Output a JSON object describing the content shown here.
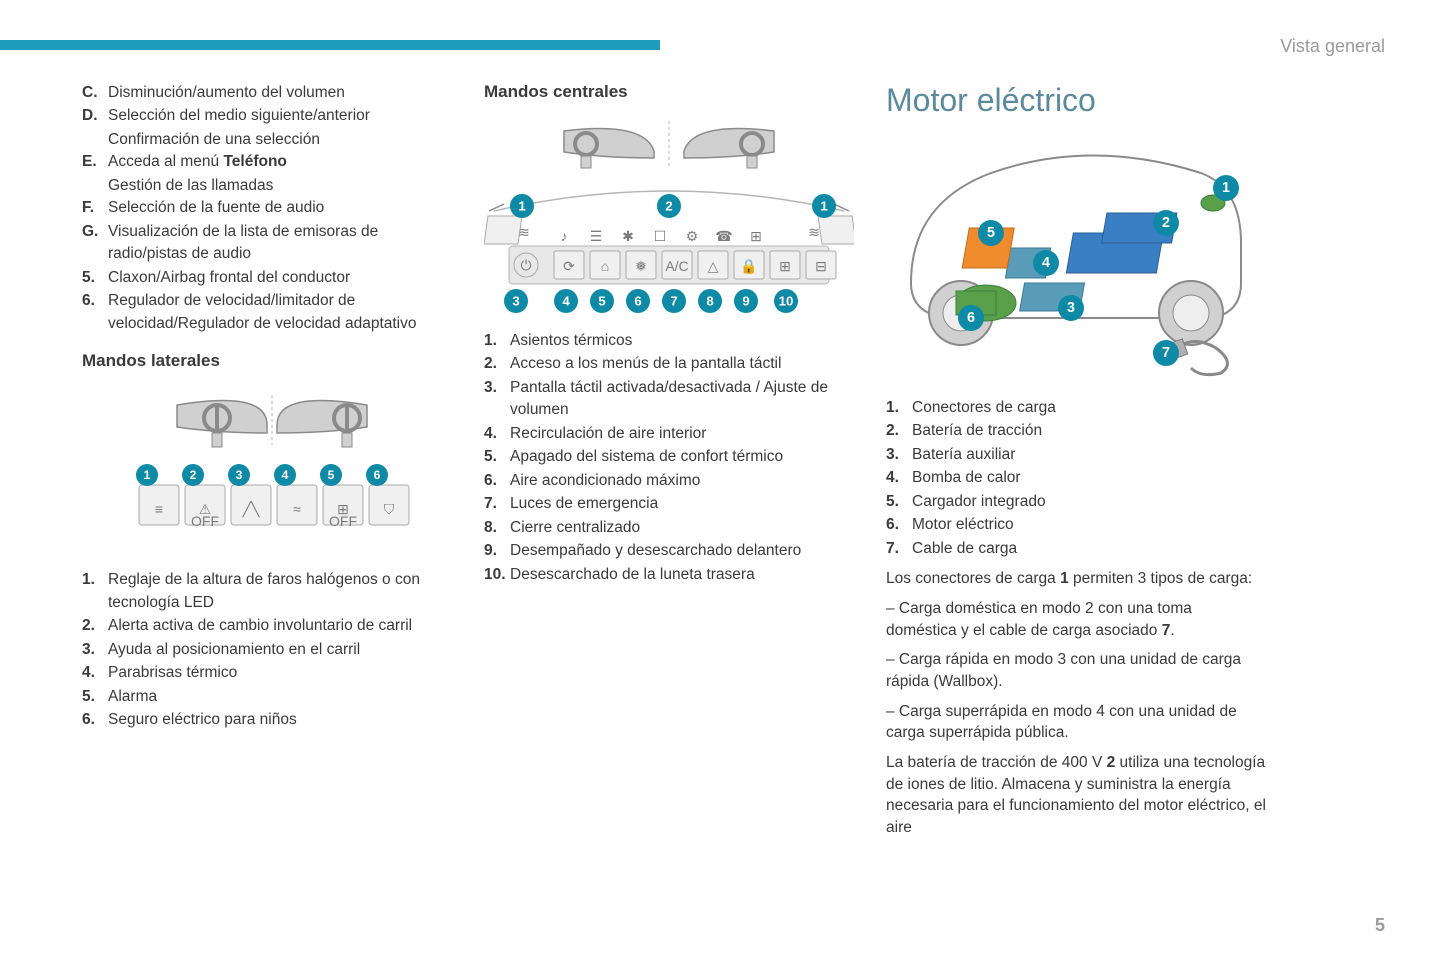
{
  "header": {
    "label": "Vista general"
  },
  "pageNumber": "5",
  "colors": {
    "accent": "#1b9cb8",
    "callout": "#0e8aa6",
    "titleGray": "#5b8a9c",
    "text": "#3a3a3a",
    "muted": "#9a9a9a"
  },
  "col1": {
    "letterList": [
      {
        "m": "C.",
        "t": "Disminución/aumento del volumen"
      },
      {
        "m": "D.",
        "t": "Selección del medio siguiente/anterior",
        "sub": "Confirmación de una selección"
      },
      {
        "m": "E.",
        "t": "Acceda al menú ",
        "bold": "Teléfono",
        "sub": "Gestión de las llamadas"
      },
      {
        "m": "F.",
        "t": "Selección de la fuente de audio"
      },
      {
        "m": "G.",
        "t": "Visualización de la lista de emisoras de radio/pistas de audio"
      },
      {
        "m": "5.",
        "t": "Claxon/Airbag frontal del conductor"
      },
      {
        "m": "6.",
        "t": "Regulador de velocidad/limitador de velocidad/Regulador de velocidad adaptativo"
      }
    ],
    "sideTitle": "Mandos laterales",
    "sideList": [
      {
        "m": "1.",
        "t": "Reglaje de la altura de faros halógenos o con tecnología LED"
      },
      {
        "m": "2.",
        "t": "Alerta activa de cambio involuntario de carril"
      },
      {
        "m": "3.",
        "t": "Ayuda al posicionamiento en el carril"
      },
      {
        "m": "4.",
        "t": "Parabrisas térmico"
      },
      {
        "m": "5.",
        "t": "Alarma"
      },
      {
        "m": "6.",
        "t": "Seguro eléctrico para niños"
      }
    ],
    "sideDiagram": {
      "buttons": [
        1,
        2,
        3,
        4,
        5,
        6
      ],
      "glyphs": [
        "≡",
        "⚠",
        "╱╲",
        "≈",
        "⊞",
        "⛉"
      ]
    }
  },
  "col2": {
    "centralTitle": "Mandos centrales",
    "centralList": [
      {
        "m": "1.",
        "t": "Asientos térmicos"
      },
      {
        "m": "2.",
        "t": "Acceso a los menús de la pantalla táctil"
      },
      {
        "m": "3.",
        "t": "Pantalla táctil activada/desactivada / Ajuste de volumen"
      },
      {
        "m": "4.",
        "t": "Recirculación de aire interior"
      },
      {
        "m": "5.",
        "t": "Apagado del sistema de confort térmico"
      },
      {
        "m": "6.",
        "t": "Aire acondicionado máximo"
      },
      {
        "m": "7.",
        "t": "Luces de emergencia"
      },
      {
        "m": "8.",
        "t": "Cierre centralizado"
      },
      {
        "m": "9.",
        "t": "Desempañado y desescarchado delantero"
      },
      {
        "m": "10.",
        "t": "Desescarchado de la luneta trasera"
      }
    ],
    "centralDiagram": {
      "callouts": [
        1,
        2,
        3,
        4,
        5,
        6,
        7,
        8,
        9,
        10
      ],
      "rowGlyphs": [
        "⟳",
        "⌂",
        "❅",
        "A/C",
        "△",
        "🔒",
        "⊞",
        "⊟"
      ],
      "topGlyphs": [
        "♪",
        "☰",
        "✱",
        "☐",
        "⚙",
        "☎",
        "⊞"
      ]
    }
  },
  "col3": {
    "motorTitle": "Motor eléctrico",
    "motorList": [
      {
        "m": "1.",
        "t": "Conectores de carga"
      },
      {
        "m": "2.",
        "t": "Batería de tracción"
      },
      {
        "m": "3.",
        "t": "Batería auxiliar"
      },
      {
        "m": "4.",
        "t": "Bomba de calor"
      },
      {
        "m": "5.",
        "t": "Cargador integrado"
      },
      {
        "m": "6.",
        "t": "Motor eléctrico"
      },
      {
        "m": "7.",
        "t": "Cable de carga"
      }
    ],
    "motorDiagram": {
      "callouts": [
        1,
        2,
        3,
        4,
        5,
        6,
        7
      ],
      "partColors": {
        "charger": "#f08c2e",
        "battery": "#3a7fc4",
        "aux": "#5a9bb8",
        "pump": "#5a9bb8",
        "motor": "#5aa04a",
        "connector": "#5aa04a",
        "cable": "#9a9a9a"
      }
    },
    "paragraphs": [
      "Los conectores de carga <b>1</b> permiten 3 tipos de carga:",
      "–  Carga doméstica en modo 2 con una toma doméstica y el cable de carga asociado <b>7</b>.",
      "–  Carga rápida en modo 3 con una unidad de carga rápida (Wallbox).",
      "–  Carga superrápida en modo 4 con una unidad de carga superrápida pública.",
      "La batería de tracción de 400 V <b>2</b> utiliza una tecnología de iones de litio. Almacena y suministra la energía necesaria para el funcionamiento del motor eléctrico, el aire"
    ]
  }
}
